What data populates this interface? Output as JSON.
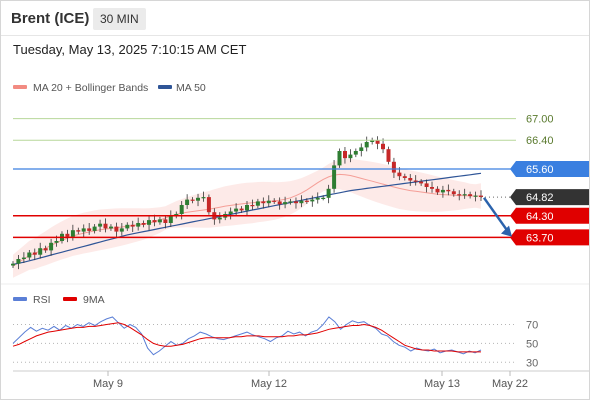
{
  "header": {
    "symbol": "Brent (ICE)",
    "interval": "30 MIN"
  },
  "timestamp": "Tuesday, May 13, 2025 7:10:15 AM CET",
  "colors": {
    "bollinger": "#f28b82",
    "ma50": "#2f5597",
    "level_line": "#e00000",
    "level_badge": "#e00000",
    "resistance_line": "#b7d79a",
    "current_badge": "#333333",
    "resistance_badge": "#3a7fe0",
    "bull": "#2e7d32",
    "bear": "#c62828",
    "rsi": "#5b7fd6",
    "rsi_ma": "#e00000",
    "arrow": "#2b63ad"
  },
  "legend": {
    "bollinger_label": "MA 20 + Bollinger Bands",
    "ma50_label": "MA 50",
    "rsi_label": "RSI",
    "rsi_ma_label": "9MA"
  },
  "chart_data": [
    {
      "type": "candlestick",
      "ylim": [
        62.6,
        67.6
      ],
      "levels": [
        {
          "value": 67.0,
          "label": "67.00",
          "kind": "resistance"
        },
        {
          "value": 66.4,
          "label": "66.40",
          "kind": "resistance"
        },
        {
          "value": 65.6,
          "label": "65.60",
          "kind": "resistance-key"
        },
        {
          "value": 64.82,
          "label": "64.82",
          "kind": "current"
        },
        {
          "value": 64.3,
          "label": "64.30",
          "kind": "support"
        },
        {
          "value": 63.7,
          "label": "63.70",
          "kind": "support"
        }
      ],
      "x_ticks": [
        "May 9",
        "May 12",
        "May 13",
        "May 22"
      ],
      "close_series": [
        62.97,
        63.1,
        63.14,
        63.28,
        63.22,
        63.4,
        63.34,
        63.55,
        63.6,
        63.8,
        63.72,
        63.9,
        63.86,
        63.95,
        63.88,
        64.0,
        64.08,
        63.95,
        64.0,
        63.86,
        63.95,
        64.05,
        64.0,
        64.1,
        64.05,
        64.18,
        64.12,
        64.2,
        64.1,
        64.3,
        64.35,
        64.6,
        64.75,
        64.72,
        64.8,
        64.82,
        64.4,
        64.2,
        64.25,
        64.35,
        64.42,
        64.5,
        64.45,
        64.6,
        64.58,
        64.7,
        64.65,
        64.72,
        64.7,
        64.62,
        64.68,
        64.7,
        64.65,
        64.72,
        64.7,
        64.75,
        64.8,
        64.8,
        65.05,
        65.7,
        66.1,
        65.9,
        66.0,
        66.1,
        66.2,
        66.35,
        66.4,
        66.3,
        66.15,
        65.8,
        65.5,
        65.4,
        65.35,
        65.28,
        65.25,
        65.2,
        65.1,
        65.05,
        64.95,
        65.02,
        64.98,
        64.9,
        64.88,
        64.9,
        64.85,
        64.86,
        64.82
      ],
      "ma20_series": [
        62.9,
        63.0,
        63.1,
        63.2,
        63.25,
        63.33,
        63.4,
        63.48,
        63.55,
        63.62,
        63.68,
        63.74,
        63.78,
        63.82,
        63.85,
        63.88,
        63.91,
        63.93,
        63.95,
        63.97,
        63.99,
        64.01,
        64.03,
        64.05,
        64.07,
        64.1,
        64.14,
        64.18,
        64.24,
        64.3,
        64.34,
        64.37,
        64.4,
        64.42,
        64.44,
        64.46,
        64.48,
        64.51,
        64.54,
        64.57,
        64.59,
        64.61,
        64.63,
        64.65,
        64.66,
        64.68,
        64.69,
        64.7,
        64.71,
        64.73,
        64.76,
        64.8,
        64.86,
        64.93,
        65.02,
        65.12,
        65.22,
        65.31,
        65.38,
        65.43,
        65.45,
        65.44,
        65.42,
        65.38,
        65.34,
        65.3,
        65.26,
        65.22,
        65.18,
        65.14,
        65.1,
        65.06,
        65.03,
        65.0,
        64.98,
        64.96,
        64.94,
        64.92,
        64.9,
        64.89,
        64.88,
        64.87,
        64.86,
        64.86,
        64.85,
        64.85,
        64.85
      ],
      "ma50_series": [
        62.95,
        62.98,
        63.01,
        63.05,
        63.09,
        63.13,
        63.17,
        63.21,
        63.25,
        63.29,
        63.33,
        63.37,
        63.41,
        63.45,
        63.49,
        63.53,
        63.57,
        63.61,
        63.65,
        63.69,
        63.73,
        63.77,
        63.8,
        63.83,
        63.86,
        63.89,
        63.92,
        63.95,
        63.98,
        64.01,
        64.04,
        64.07,
        64.1,
        64.13,
        64.16,
        64.19,
        64.22,
        64.25,
        64.28,
        64.31,
        64.34,
        64.37,
        64.4,
        64.43,
        64.46,
        64.49,
        64.52,
        64.55,
        64.58,
        64.61,
        64.64,
        64.67,
        64.7,
        64.73,
        64.76,
        64.79,
        64.82,
        64.85,
        64.88,
        64.91,
        64.94,
        64.97,
        65.0,
        65.02,
        65.04,
        65.06,
        65.08,
        65.1,
        65.12,
        65.14,
        65.16,
        65.18,
        65.2,
        65.22,
        65.24,
        65.26,
        65.28,
        65.3,
        65.32,
        65.34,
        65.36,
        65.38,
        65.4,
        65.42,
        65.44,
        65.46,
        65.48
      ]
    },
    {
      "type": "line",
      "ylim": [
        25,
        78
      ],
      "y_ticks": [
        30,
        50,
        70
      ],
      "rsi_series": [
        50,
        56,
        62,
        67,
        63,
        66,
        64,
        68,
        64,
        69,
        66,
        70,
        68,
        72,
        69,
        73,
        76,
        78,
        72,
        66,
        70,
        67,
        60,
        45,
        38,
        42,
        47,
        52,
        48,
        50,
        55,
        58,
        62,
        60,
        57,
        55,
        54,
        56,
        58,
        60,
        62,
        59,
        57,
        55,
        52,
        56,
        58,
        63,
        60,
        62,
        58,
        62,
        64,
        70,
        78,
        73,
        65,
        70,
        74,
        72,
        73,
        69,
        66,
        60,
        58,
        52,
        48,
        46,
        42,
        45,
        43,
        42,
        44,
        40,
        42,
        43,
        41,
        39,
        42,
        40,
        43
      ],
      "rsi_ma_series": [
        47,
        49,
        52,
        55,
        58,
        60,
        62,
        63,
        64,
        65,
        66,
        67,
        67,
        68,
        68,
        69,
        70,
        71,
        72,
        70,
        67,
        63,
        59,
        54,
        50,
        48,
        47,
        47,
        48,
        49,
        51,
        53,
        55,
        56,
        56,
        56,
        56,
        56,
        57,
        57,
        58,
        58,
        58,
        57,
        57,
        57,
        57,
        58,
        58,
        59,
        59,
        60,
        61,
        63,
        65,
        66,
        67,
        68,
        69,
        69,
        70,
        69,
        67,
        64,
        60,
        56,
        52,
        48,
        46,
        44,
        43,
        43,
        42,
        42,
        42,
        42,
        41,
        41,
        41,
        41,
        41
      ]
    }
  ]
}
